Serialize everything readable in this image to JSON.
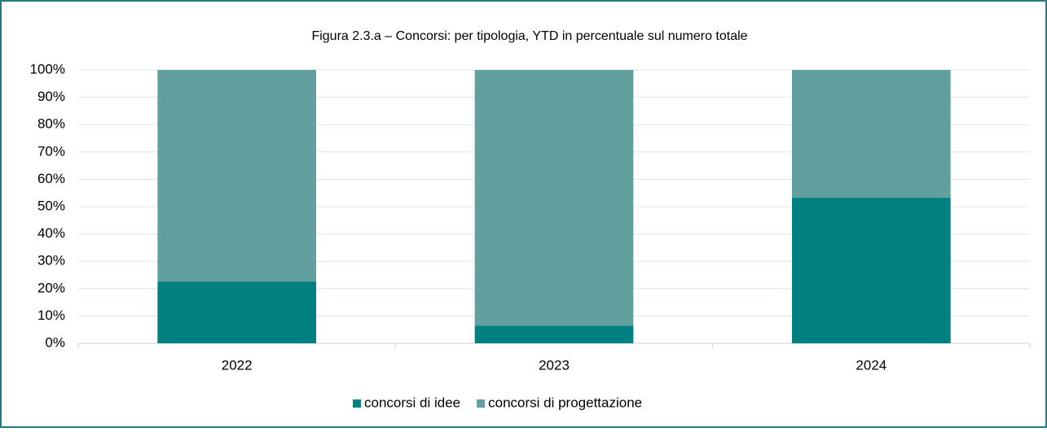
{
  "chart_data": {
    "type": "stacked_bar",
    "title": "Figura 2.3.a – Concorsi: per tipologia, YTD in percentuale sul numero totale",
    "categories": [
      "2022",
      "2023",
      "2024"
    ],
    "series": [
      {
        "name": "concorsi di idee",
        "color": "#008080",
        "values": [
          22.6,
          6.5,
          53.3
        ]
      },
      {
        "name": "concorsi di progettazione",
        "color": "#62a0a0",
        "values": [
          77.4,
          93.5,
          46.7
        ]
      }
    ],
    "ylim": [
      0,
      100
    ],
    "yticks": [
      {
        "value": 0,
        "label": "0%"
      },
      {
        "value": 10,
        "label": "10%"
      },
      {
        "value": 20,
        "label": "20%"
      },
      {
        "value": 30,
        "label": "30%"
      },
      {
        "value": 40,
        "label": "40%"
      },
      {
        "value": 50,
        "label": "50%"
      },
      {
        "value": 60,
        "label": "60%"
      },
      {
        "value": 70,
        "label": "70%"
      },
      {
        "value": 80,
        "label": "80%"
      },
      {
        "value": 90,
        "label": "90%"
      },
      {
        "value": 100,
        "label": "100%"
      }
    ],
    "grid": true,
    "legend": "bottom"
  }
}
